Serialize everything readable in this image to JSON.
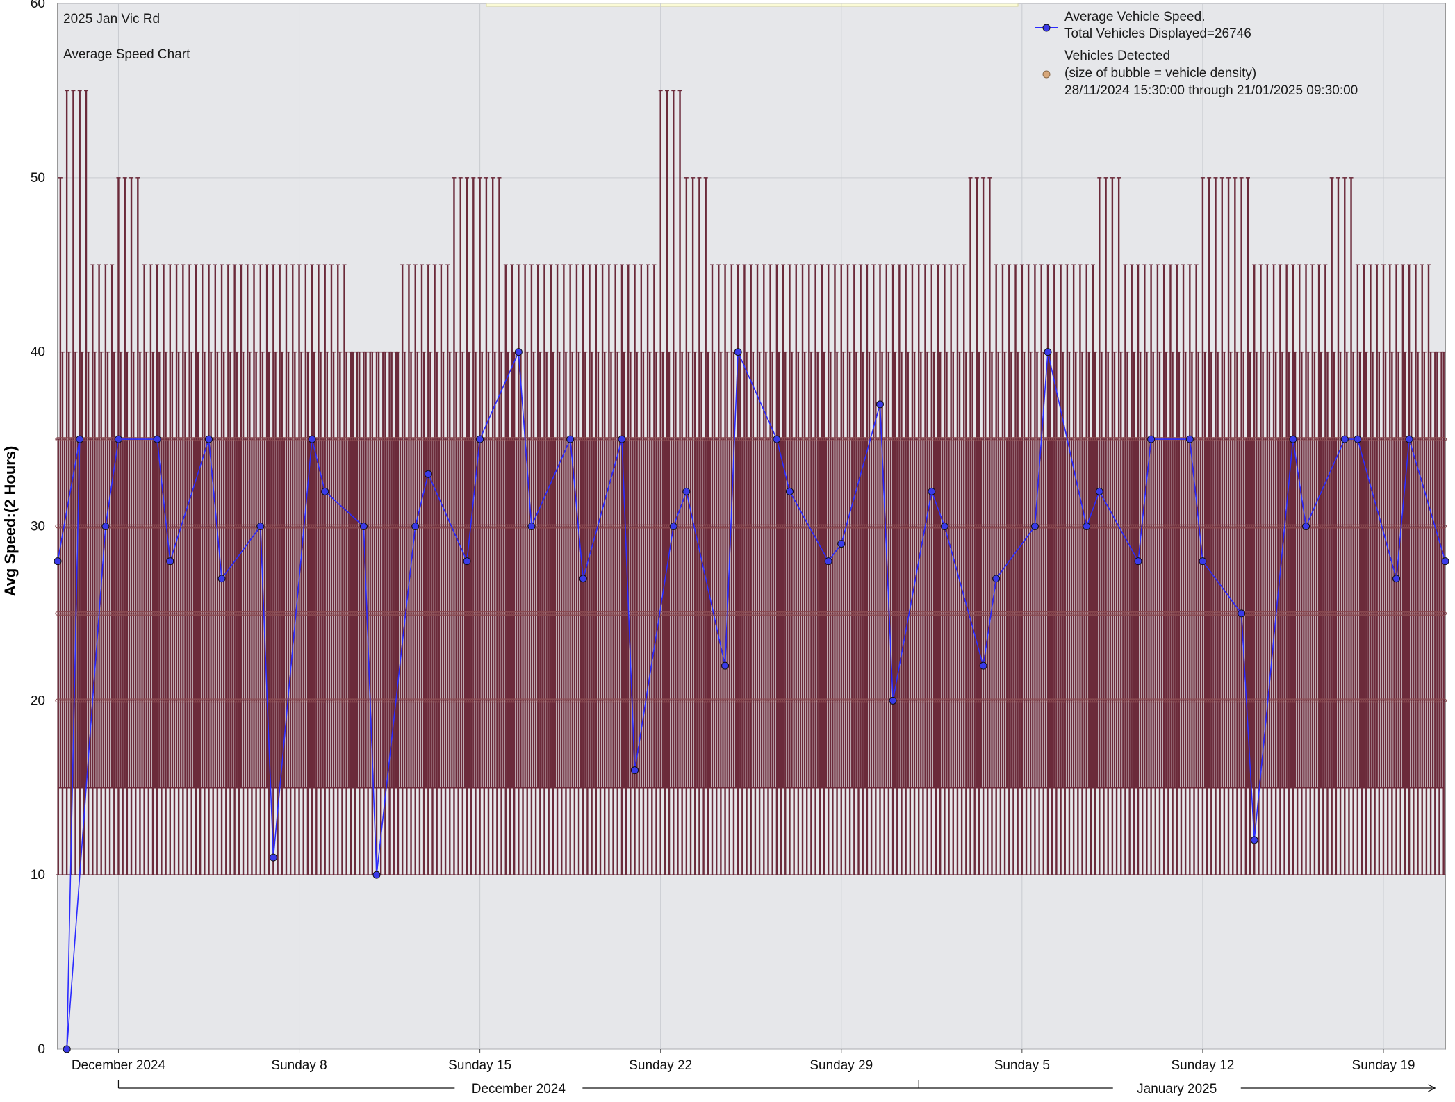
{
  "chart_data": {
    "type": "line",
    "title": "2025 Jan Vic Rd",
    "subtitle": "Average Speed Chart",
    "ylabel": "Avg Speed:(2 Hours)",
    "xlabel": "",
    "ylim": [
      0,
      60
    ],
    "yticks": [
      0,
      10,
      20,
      30,
      40,
      50,
      60
    ],
    "xlim": [
      "2024-11-28",
      "2025-01-21"
    ],
    "x_tick_labels": [
      {
        "date": "2024-12-01",
        "label": "December 2024"
      },
      {
        "date": "2024-12-08",
        "label": "Sunday 8"
      },
      {
        "date": "2024-12-15",
        "label": "Sunday 15"
      },
      {
        "date": "2024-12-22",
        "label": "Sunday 22"
      },
      {
        "date": "2024-12-29",
        "label": "Sunday 29"
      },
      {
        "date": "2025-01-05",
        "label": "Sunday 5"
      },
      {
        "date": "2025-01-12",
        "label": "Sunday 12"
      },
      {
        "date": "2025-01-19",
        "label": "Sunday 19"
      }
    ],
    "month_bands": [
      {
        "start": "2024-12-01",
        "end": "2025-01-01",
        "label": "December 2024"
      },
      {
        "start": "2025-01-01",
        "end": "2025-01-21",
        "label": "January 2025"
      }
    ],
    "grid": true,
    "legend_position": "top-right",
    "legend": {
      "series1_title": "Average Vehicle Speed.",
      "series1_total": "Total Vehicles Displayed=26746",
      "series2_title": "Vehicles Detected",
      "series2_note": "(size of bubble = vehicle density)",
      "series2_range": "28/11/2024 15:30:00 through 21/01/2025 09:30:00"
    },
    "series": [
      {
        "name": "Average Vehicle Speed.",
        "type": "line",
        "color": "#2b2bff",
        "marker_fill": "#3a3ae8",
        "points": [
          {
            "x": "2024-11-28",
            "y": 28
          },
          {
            "x": "2024-11-29",
            "y": 35
          },
          {
            "x": "2024-11-29",
            "y": 0
          },
          {
            "x": "2024-11-30",
            "y": 30
          },
          {
            "x": "2024-12-01",
            "y": 35
          },
          {
            "x": "2024-12-02",
            "y": 35
          },
          {
            "x": "2024-12-03",
            "y": 28
          },
          {
            "x": "2024-12-04",
            "y": 35
          },
          {
            "x": "2024-12-05",
            "y": 27
          },
          {
            "x": "2024-12-06",
            "y": 30
          },
          {
            "x": "2024-12-07",
            "y": 11
          },
          {
            "x": "2024-12-08",
            "y": 35
          },
          {
            "x": "2024-12-09",
            "y": 32
          },
          {
            "x": "2024-12-10",
            "y": 30
          },
          {
            "x": "2024-12-11",
            "y": 10
          },
          {
            "x": "2024-12-12",
            "y": 30
          },
          {
            "x": "2024-12-13",
            "y": 33
          },
          {
            "x": "2024-12-14",
            "y": 28
          },
          {
            "x": "2024-12-15",
            "y": 35
          },
          {
            "x": "2024-12-16",
            "y": 40
          },
          {
            "x": "2024-12-17",
            "y": 30
          },
          {
            "x": "2024-12-18",
            "y": 35
          },
          {
            "x": "2024-12-19",
            "y": 27
          },
          {
            "x": "2024-12-20",
            "y": 35
          },
          {
            "x": "2024-12-21",
            "y": 16
          },
          {
            "x": "2024-12-22",
            "y": 30
          },
          {
            "x": "2024-12-23",
            "y": 32
          },
          {
            "x": "2024-12-24",
            "y": 22
          },
          {
            "x": "2024-12-25",
            "y": 40
          },
          {
            "x": "2024-12-26",
            "y": 35
          },
          {
            "x": "2024-12-27",
            "y": 32
          },
          {
            "x": "2024-12-28",
            "y": 28
          },
          {
            "x": "2024-12-29",
            "y": 29
          },
          {
            "x": "2024-12-30",
            "y": 37
          },
          {
            "x": "2024-12-31",
            "y": 20
          },
          {
            "x": "2025-01-01",
            "y": 32
          },
          {
            "x": "2025-01-02",
            "y": 30
          },
          {
            "x": "2025-01-03",
            "y": 22
          },
          {
            "x": "2025-01-04",
            "y": 27
          },
          {
            "x": "2025-01-05",
            "y": 30
          },
          {
            "x": "2025-01-06",
            "y": 40
          },
          {
            "x": "2025-01-07",
            "y": 30
          },
          {
            "x": "2025-01-08",
            "y": 32
          },
          {
            "x": "2025-01-09",
            "y": 28
          },
          {
            "x": "2025-01-10",
            "y": 35
          },
          {
            "x": "2025-01-11",
            "y": 35
          },
          {
            "x": "2025-01-12",
            "y": 28
          },
          {
            "x": "2025-01-13",
            "y": 25
          },
          {
            "x": "2025-01-14",
            "y": 12
          },
          {
            "x": "2025-01-15",
            "y": 35
          },
          {
            "x": "2025-01-16",
            "y": 30
          },
          {
            "x": "2025-01-17",
            "y": 35
          },
          {
            "x": "2025-01-18",
            "y": 35
          },
          {
            "x": "2025-01-19",
            "y": 27
          },
          {
            "x": "2025-01-20",
            "y": 35
          },
          {
            "x": "2025-01-21",
            "y": 28
          }
        ]
      },
      {
        "name": "Vehicles Detected",
        "type": "bubble-range",
        "color": "#6b2a3a",
        "note": "Approximate per-day extremes of vehicle speeds detected",
        "ranges": [
          {
            "x": "2024-11-28",
            "low": 10,
            "high": 50
          },
          {
            "x": "2024-11-29",
            "low": 10,
            "high": 55
          },
          {
            "x": "2024-11-30",
            "low": 10,
            "high": 45
          },
          {
            "x": "2024-12-01",
            "low": 10,
            "high": 50
          },
          {
            "x": "2024-12-02",
            "low": 10,
            "high": 45
          },
          {
            "x": "2024-12-03",
            "low": 10,
            "high": 45
          },
          {
            "x": "2024-12-04",
            "low": 10,
            "high": 45
          },
          {
            "x": "2024-12-05",
            "low": 10,
            "high": 45
          },
          {
            "x": "2024-12-06",
            "low": 10,
            "high": 45
          },
          {
            "x": "2024-12-07",
            "low": 10,
            "high": 45
          },
          {
            "x": "2024-12-08",
            "low": 10,
            "high": 45
          },
          {
            "x": "2024-12-09",
            "low": 10,
            "high": 45
          },
          {
            "x": "2024-12-10",
            "low": 10,
            "high": 40
          },
          {
            "x": "2024-12-11",
            "low": 10,
            "high": 40
          },
          {
            "x": "2024-12-12",
            "low": 10,
            "high": 45
          },
          {
            "x": "2024-12-13",
            "low": 10,
            "high": 45
          },
          {
            "x": "2024-12-14",
            "low": 10,
            "high": 50
          },
          {
            "x": "2024-12-15",
            "low": 10,
            "high": 50
          },
          {
            "x": "2024-12-16",
            "low": 10,
            "high": 45
          },
          {
            "x": "2024-12-17",
            "low": 10,
            "high": 45
          },
          {
            "x": "2024-12-18",
            "low": 10,
            "high": 45
          },
          {
            "x": "2024-12-19",
            "low": 10,
            "high": 45
          },
          {
            "x": "2024-12-20",
            "low": 10,
            "high": 45
          },
          {
            "x": "2024-12-21",
            "low": 10,
            "high": 45
          },
          {
            "x": "2024-12-22",
            "low": 10,
            "high": 55
          },
          {
            "x": "2024-12-23",
            "low": 10,
            "high": 50
          },
          {
            "x": "2024-12-24",
            "low": 10,
            "high": 45
          },
          {
            "x": "2024-12-25",
            "low": 10,
            "high": 45
          },
          {
            "x": "2024-12-26",
            "low": 10,
            "high": 45
          },
          {
            "x": "2024-12-27",
            "low": 10,
            "high": 45
          },
          {
            "x": "2024-12-28",
            "low": 10,
            "high": 45
          },
          {
            "x": "2024-12-29",
            "low": 10,
            "high": 45
          },
          {
            "x": "2024-12-30",
            "low": 10,
            "high": 45
          },
          {
            "x": "2024-12-31",
            "low": 10,
            "high": 45
          },
          {
            "x": "2025-01-01",
            "low": 10,
            "high": 45
          },
          {
            "x": "2025-01-02",
            "low": 10,
            "high": 45
          },
          {
            "x": "2025-01-03",
            "low": 10,
            "high": 50
          },
          {
            "x": "2025-01-04",
            "low": 10,
            "high": 45
          },
          {
            "x": "2025-01-05",
            "low": 10,
            "high": 45
          },
          {
            "x": "2025-01-06",
            "low": 10,
            "high": 45
          },
          {
            "x": "2025-01-07",
            "low": 10,
            "high": 45
          },
          {
            "x": "2025-01-08",
            "low": 10,
            "high": 50
          },
          {
            "x": "2025-01-09",
            "low": 10,
            "high": 45
          },
          {
            "x": "2025-01-10",
            "low": 10,
            "high": 45
          },
          {
            "x": "2025-01-11",
            "low": 10,
            "high": 45
          },
          {
            "x": "2025-01-12",
            "low": 10,
            "high": 50
          },
          {
            "x": "2025-01-13",
            "low": 10,
            "high": 50
          },
          {
            "x": "2025-01-14",
            "low": 10,
            "high": 45
          },
          {
            "x": "2025-01-15",
            "low": 10,
            "high": 45
          },
          {
            "x": "2025-01-16",
            "low": 10,
            "high": 45
          },
          {
            "x": "2025-01-17",
            "low": 10,
            "high": 50
          },
          {
            "x": "2025-01-18",
            "low": 10,
            "high": 45
          },
          {
            "x": "2025-01-19",
            "low": 10,
            "high": 45
          },
          {
            "x": "2025-01-20",
            "low": 10,
            "high": 45
          },
          {
            "x": "2025-01-21",
            "low": 10,
            "high": 40
          }
        ]
      }
    ]
  },
  "colors": {
    "plot_background": "#e6e7ea",
    "grid": "#c9cbd0",
    "range_bar": "#6b2a3a",
    "line": "#2b2bff",
    "highlight_band": "#fbfbd6"
  }
}
